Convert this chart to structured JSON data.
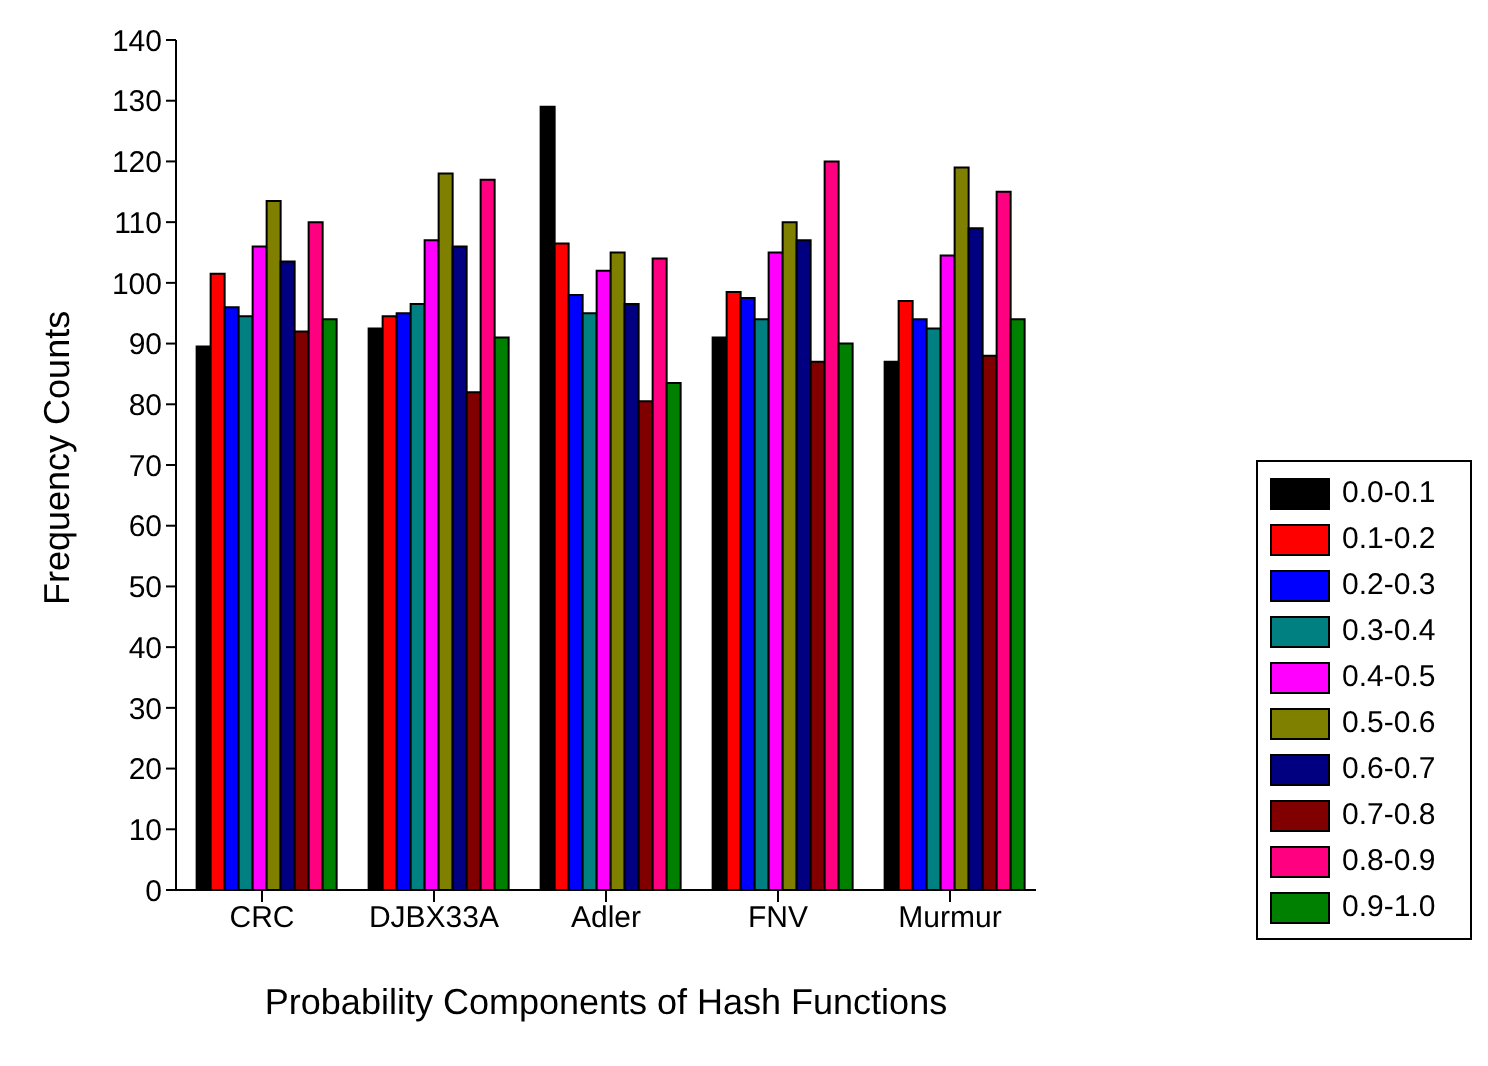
{
  "chart_data": {
    "type": "bar",
    "xlabel": "Probability Components of Hash Functions",
    "ylabel": "Frequency Counts",
    "categories": [
      "CRC",
      "DJBX33A",
      "Adler",
      "FNV",
      "Murmur"
    ],
    "series": [
      {
        "name": "0.0-0.1",
        "color": "#000000",
        "values": [
          89.5,
          92.5,
          129,
          91,
          87
        ]
      },
      {
        "name": "0.1-0.2",
        "color": "#ff0000",
        "values": [
          101.5,
          94.5,
          106.5,
          98.5,
          97
        ]
      },
      {
        "name": "0.2-0.3",
        "color": "#0000ff",
        "values": [
          96,
          95,
          98,
          97.5,
          94
        ]
      },
      {
        "name": "0.3-0.4",
        "color": "#008080",
        "values": [
          94.5,
          96.5,
          95,
          94,
          92.5
        ]
      },
      {
        "name": "0.4-0.5",
        "color": "#ff00ff",
        "values": [
          106,
          107,
          102,
          105,
          104.5
        ]
      },
      {
        "name": "0.5-0.6",
        "color": "#808000",
        "values": [
          113.5,
          118,
          105,
          110,
          119
        ]
      },
      {
        "name": "0.6-0.7",
        "color": "#000080",
        "values": [
          103.5,
          106,
          96.5,
          107,
          109
        ]
      },
      {
        "name": "0.7-0.8",
        "color": "#800000",
        "values": [
          92,
          82,
          80.5,
          87,
          88
        ]
      },
      {
        "name": "0.8-0.9",
        "color": "#ff0080",
        "values": [
          110,
          117,
          104,
          120,
          115
        ]
      },
      {
        "name": "0.9-1.0",
        "color": "#008000",
        "values": [
          94,
          91,
          83.5,
          90,
          94
        ]
      }
    ],
    "ylim": [
      0,
      140
    ],
    "yticks": [
      0,
      10,
      20,
      30,
      40,
      50,
      60,
      70,
      80,
      90,
      100,
      110,
      120,
      130,
      140
    ],
    "grid": false,
    "legend": "right"
  }
}
